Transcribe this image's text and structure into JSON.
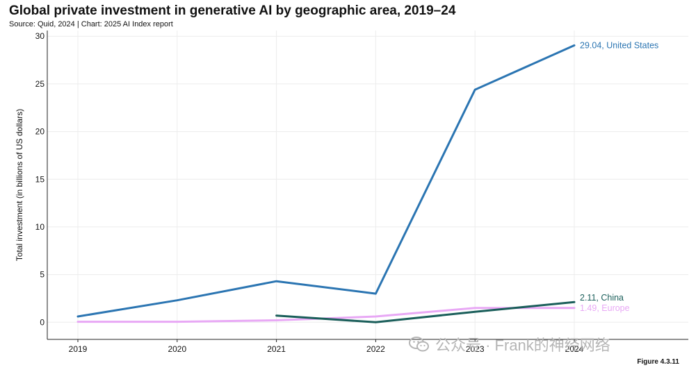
{
  "title": "Global private investment in generative AI by geographic area, 2019–24",
  "subtitle": "Source: Quid, 2024 | Chart: 2025 AI Index report",
  "figure_label": "Figure 4.3.11",
  "watermark": {
    "text": "公众号 · Frank的神经网络",
    "icon": "wechat-icon"
  },
  "chart_data": {
    "type": "line",
    "title": "Global private investment in generative AI by geographic area, 2019–24",
    "xlabel": "",
    "ylabel": "Total investment (in billions of US dollars)",
    "x": [
      2019,
      2020,
      2021,
      2022,
      2023,
      2024
    ],
    "x_tick_labels": [
      "2019",
      "2020",
      "2021",
      "2022",
      "2023",
      "2024"
    ],
    "ylim": [
      -1.8,
      30.6
    ],
    "yticks": [
      0,
      5,
      10,
      15,
      20,
      25,
      30
    ],
    "grid": true,
    "series": [
      {
        "name": "United States",
        "color": "#2b75b2",
        "values": [
          0.6,
          2.3,
          4.3,
          3.0,
          24.4,
          29.04
        ],
        "end_label": "29.04, United States"
      },
      {
        "name": "Europe",
        "color": "#e8a8f5",
        "values": [
          0.05,
          0.05,
          0.2,
          0.6,
          1.5,
          1.49
        ],
        "end_label": "1.49, Europe"
      },
      {
        "name": "China",
        "color": "#1a5e5a",
        "values": [
          null,
          null,
          0.7,
          0.0,
          1.1,
          2.11
        ],
        "end_label": "2.11, China"
      }
    ]
  }
}
